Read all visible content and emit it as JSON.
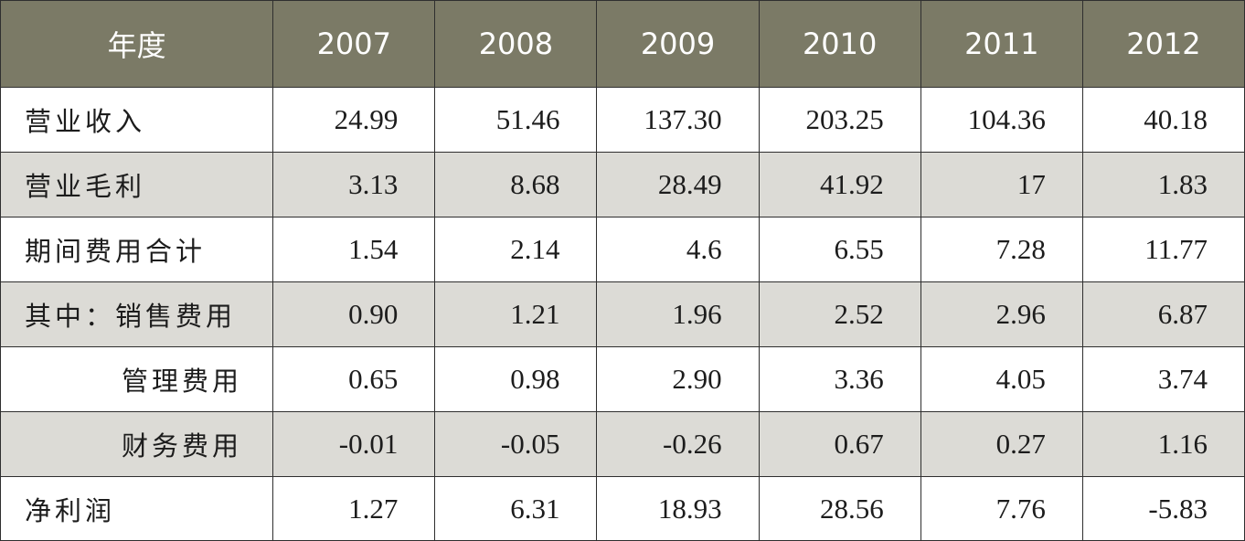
{
  "chart_data": {
    "type": "table",
    "header": [
      "年度",
      "2007",
      "2008",
      "2009",
      "2010",
      "2011",
      "2012"
    ],
    "rows": [
      {
        "label": "营业收入",
        "indent": false,
        "shade": false,
        "values": [
          "24.99",
          "51.46",
          "137.30",
          "203.25",
          "104.36",
          "40.18"
        ]
      },
      {
        "label": "营业毛利",
        "indent": false,
        "shade": true,
        "values": [
          "3.13",
          "8.68",
          "28.49",
          "41.92",
          "17",
          "1.83"
        ]
      },
      {
        "label": "期间费用合计",
        "indent": false,
        "shade": false,
        "values": [
          "1.54",
          "2.14",
          "4.6",
          "6.55",
          "7.28",
          "11.77"
        ]
      },
      {
        "label": "其中：销售费用",
        "indent": false,
        "shade": true,
        "values": [
          "0.90",
          "1.21",
          "1.96",
          "2.52",
          "2.96",
          "6.87"
        ]
      },
      {
        "label": "管理费用",
        "indent": true,
        "shade": false,
        "values": [
          "0.65",
          "0.98",
          "2.90",
          "3.36",
          "4.05",
          "3.74"
        ]
      },
      {
        "label": "财务费用",
        "indent": true,
        "shade": true,
        "values": [
          "-0.01",
          "-0.05",
          "-0.26",
          "0.67",
          "0.27",
          "1.16"
        ]
      },
      {
        "label": "净利润",
        "indent": false,
        "shade": false,
        "values": [
          "1.27",
          "6.31",
          "18.93",
          "28.56",
          "7.76",
          "-5.83"
        ]
      }
    ]
  },
  "colors": {
    "header_background": "#7b7a66",
    "header_text": "#ffffff",
    "shaded_row": "#dcdbd6",
    "plain_row": "#ffffff",
    "border": "#2f2f2f"
  }
}
